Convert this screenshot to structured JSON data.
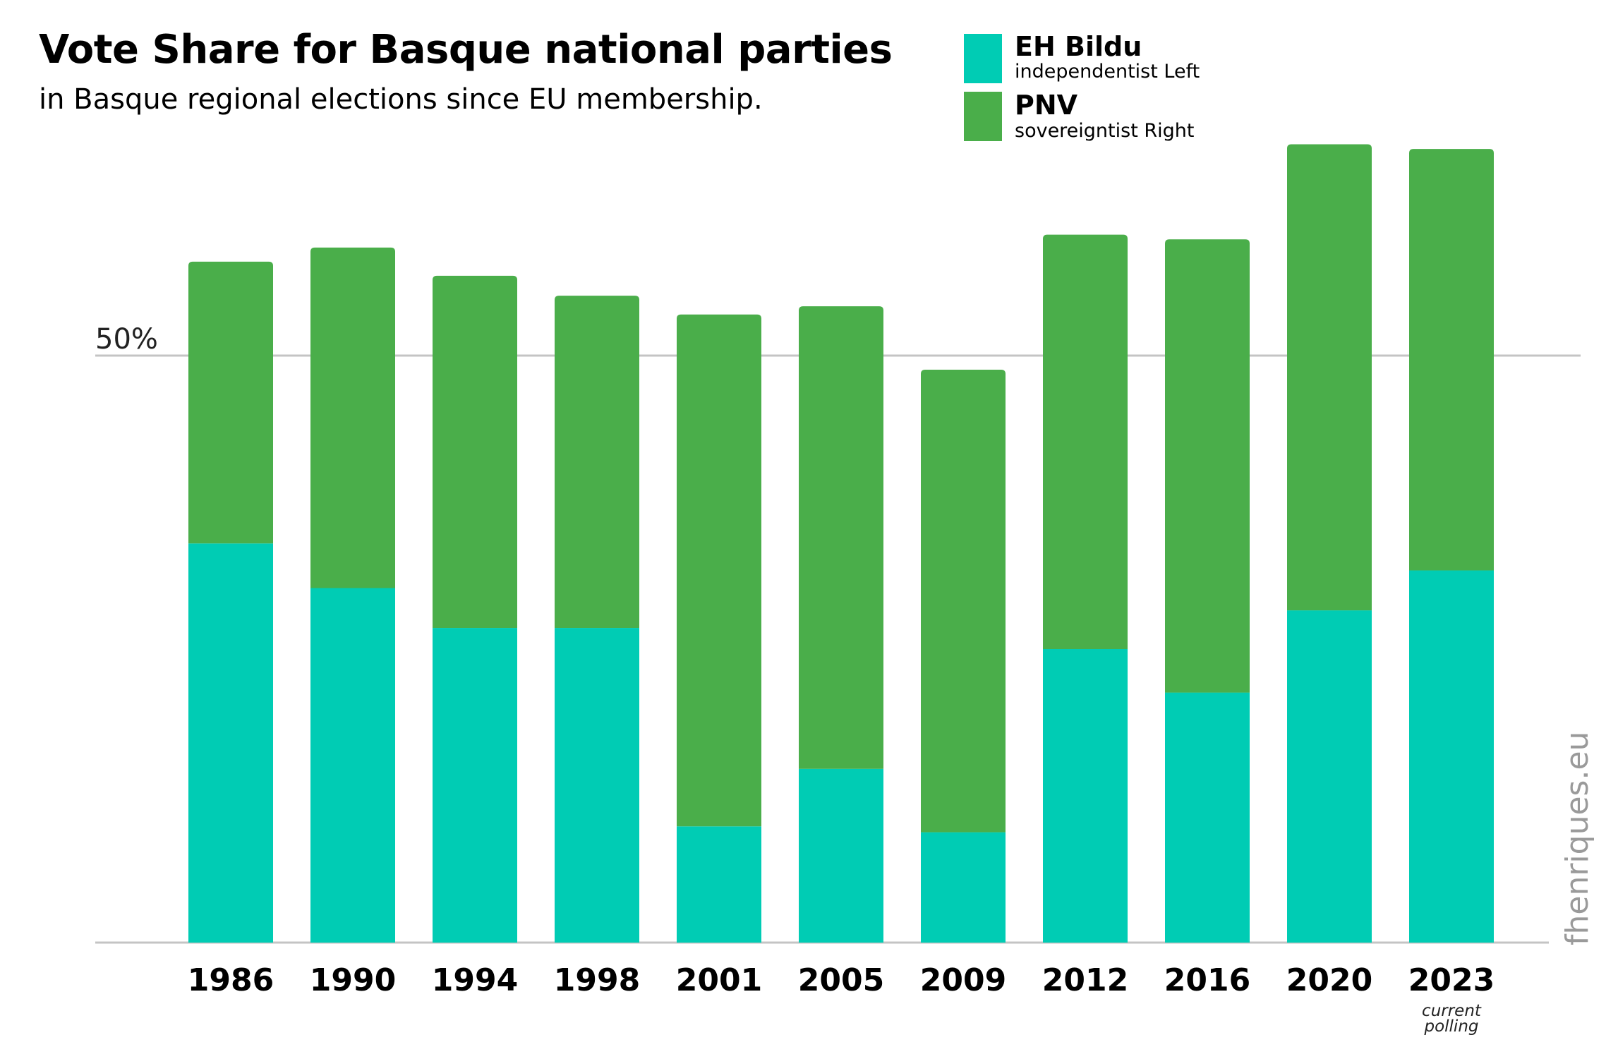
{
  "chart_data": {
    "type": "bar",
    "stacked": true,
    "title": "Vote Share for Basque national parties",
    "subtitle": "in Basque regional elections since EU membership.",
    "categories": [
      "1986",
      "1990",
      "1994",
      "1998",
      "2001",
      "2005",
      "2009",
      "2012",
      "2016",
      "2020",
      "2023"
    ],
    "category_notes": {
      "2023": "current polling"
    },
    "series": [
      {
        "name": "EH Bildu",
        "description": "independentist Left",
        "color": "#00CCB4",
        "values": [
          34.0,
          30.2,
          26.8,
          26.8,
          9.9,
          14.8,
          9.4,
          25.0,
          21.3,
          28.3,
          31.7
        ]
      },
      {
        "name": "PNV",
        "description": "sovereigntist Right",
        "color": "#4AAE4A",
        "values": [
          24.0,
          29.0,
          30.0,
          28.3,
          43.6,
          39.4,
          39.4,
          35.3,
          38.6,
          39.7,
          35.9
        ]
      }
    ],
    "y_ticks": [
      {
        "value": 50,
        "label": "50%"
      }
    ],
    "ylim": [
      0,
      70
    ],
    "grid": true,
    "legend_position": "top-right",
    "bar_corner": "rounded-top"
  },
  "watermark": "fhenriques.eu"
}
